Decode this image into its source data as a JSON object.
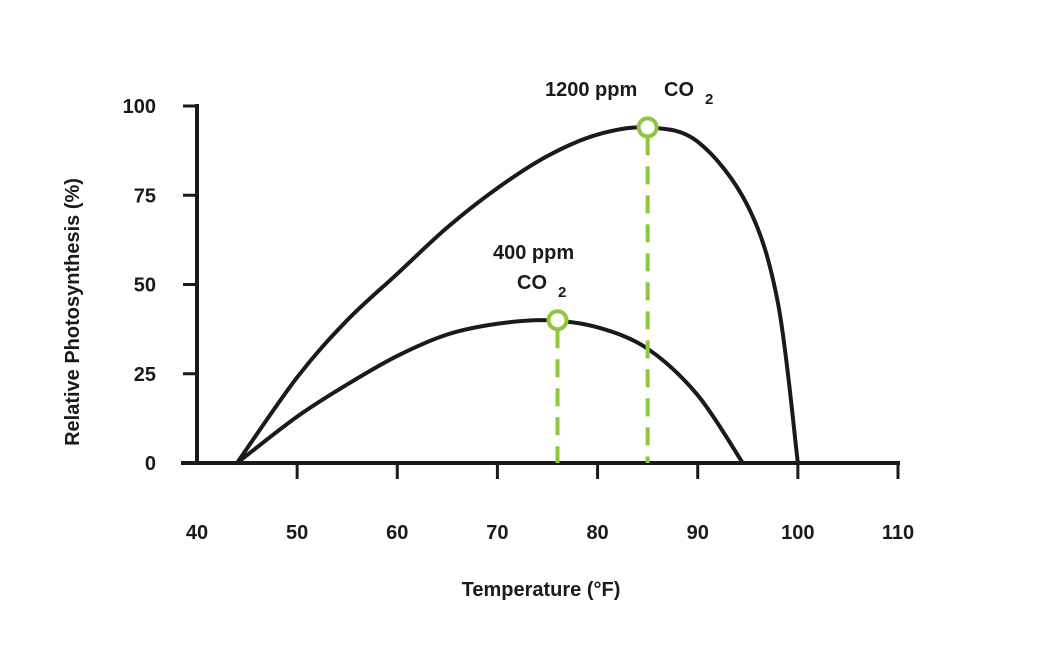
{
  "chart_data": {
    "type": "line",
    "xlabel": "Temperature (°F)",
    "ylabel": "Relative Photosynthesis (%)",
    "xlim": [
      40,
      110
    ],
    "ylim": [
      0,
      100
    ],
    "x_ticks": [
      "40",
      "50",
      "60",
      "70",
      "80",
      "90",
      "100",
      "110"
    ],
    "y_ticks": [
      "0",
      "25",
      "50",
      "75",
      "100"
    ],
    "grid": false,
    "colors": {
      "curve": "#1a1a1a",
      "highlight": "#8dc63f"
    },
    "series": [
      {
        "x": [
          44,
          50,
          55,
          60,
          65,
          70,
          75,
          80,
          85,
          90,
          94.5
        ],
        "y": [
          0,
          13,
          22,
          30,
          36,
          39,
          40,
          38,
          32,
          19,
          0
        ],
        "peak": {
          "x": 76,
          "y": 40
        },
        "label": {
          "line1": "400 ppm",
          "main": "CO",
          "subscript": "2"
        }
      },
      {
        "x": [
          44,
          50,
          55,
          60,
          65,
          70,
          75,
          80,
          85,
          90,
          95,
          98,
          100
        ],
        "y": [
          0,
          24,
          40,
          53,
          66,
          77,
          86,
          92,
          94,
          90,
          72,
          45,
          0
        ],
        "peak": {
          "x": 85,
          "y": 94
        },
        "label": {
          "line1": "1200 ppm",
          "main": "CO",
          "subscript": "2"
        }
      }
    ]
  }
}
